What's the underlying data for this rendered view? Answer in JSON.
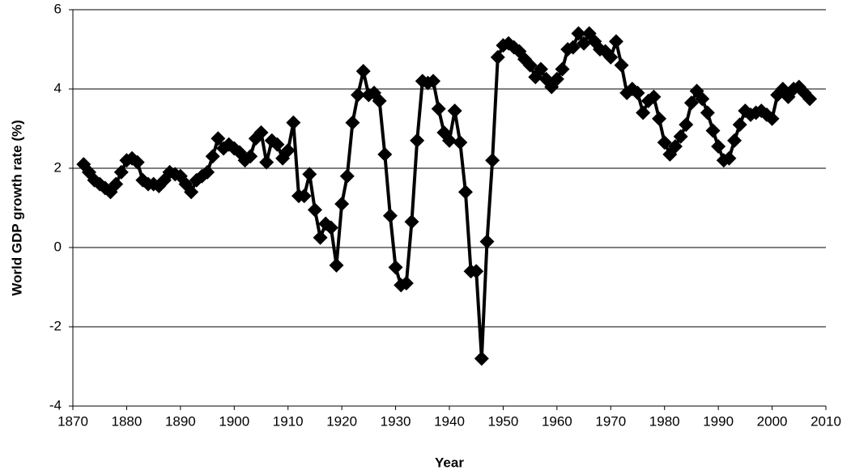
{
  "chart_data": {
    "type": "line",
    "x_label": "Year",
    "y_label": "World GDP growth rate (%)",
    "x": [
      1872,
      1873,
      1874,
      1875,
      1876,
      1877,
      1878,
      1879,
      1880,
      1881,
      1882,
      1883,
      1884,
      1885,
      1886,
      1887,
      1888,
      1889,
      1890,
      1891,
      1892,
      1893,
      1894,
      1895,
      1896,
      1897,
      1898,
      1899,
      1900,
      1901,
      1902,
      1903,
      1904,
      1905,
      1906,
      1907,
      1908,
      1909,
      1910,
      1911,
      1912,
      1913,
      1914,
      1915,
      1916,
      1917,
      1918,
      1919,
      1920,
      1921,
      1922,
      1923,
      1924,
      1925,
      1926,
      1927,
      1928,
      1929,
      1930,
      1931,
      1932,
      1933,
      1934,
      1935,
      1936,
      1937,
      1938,
      1939,
      1940,
      1941,
      1942,
      1943,
      1944,
      1945,
      1946,
      1947,
      1948,
      1949,
      1950,
      1951,
      1952,
      1953,
      1954,
      1955,
      1956,
      1957,
      1958,
      1959,
      1960,
      1961,
      1962,
      1963,
      1964,
      1965,
      1966,
      1967,
      1968,
      1969,
      1970,
      1971,
      1972,
      1973,
      1974,
      1975,
      1976,
      1977,
      1978,
      1979,
      1980,
      1981,
      1982,
      1983,
      1984,
      1985,
      1986,
      1987,
      1988,
      1989,
      1990,
      1991,
      1992,
      1993,
      1994,
      1995,
      1996,
      1997,
      1998,
      1999,
      2000,
      2001,
      2002,
      2003,
      2004,
      2005,
      2006,
      2007
    ],
    "values": [
      2.1,
      1.9,
      1.7,
      1.6,
      1.5,
      1.4,
      1.6,
      1.9,
      2.2,
      2.25,
      2.15,
      1.7,
      1.6,
      1.6,
      1.55,
      1.7,
      1.9,
      1.85,
      1.8,
      1.6,
      1.4,
      1.7,
      1.8,
      1.9,
      2.3,
      2.75,
      2.5,
      2.6,
      2.5,
      2.4,
      2.2,
      2.3,
      2.75,
      2.9,
      2.15,
      2.7,
      2.6,
      2.25,
      2.45,
      3.15,
      1.3,
      1.3,
      1.85,
      0.95,
      0.25,
      0.6,
      0.5,
      -0.45,
      1.1,
      1.8,
      3.15,
      3.85,
      4.45,
      3.85,
      3.9,
      3.7,
      2.35,
      0.8,
      -0.5,
      -0.95,
      -0.9,
      0.65,
      2.7,
      4.2,
      4.15,
      4.2,
      3.5,
      2.9,
      2.7,
      3.45,
      2.65,
      1.4,
      -0.6,
      -0.6,
      -2.8,
      0.15,
      2.2,
      4.8,
      5.1,
      5.15,
      5.05,
      4.95,
      4.75,
      4.6,
      4.3,
      4.5,
      4.25,
      4.05,
      4.25,
      4.5,
      5.0,
      5.05,
      5.4,
      5.15,
      5.4,
      5.2,
      5.0,
      4.95,
      4.8,
      5.2,
      4.6,
      3.9,
      4.0,
      3.9,
      3.4,
      3.7,
      3.8,
      3.25,
      2.65,
      2.35,
      2.55,
      2.8,
      3.1,
      3.65,
      3.95,
      3.75,
      3.4,
      2.95,
      2.55,
      2.2,
      2.25,
      2.7,
      3.1,
      3.45,
      3.35,
      3.4,
      3.45,
      3.35,
      3.25,
      3.85,
      4.0,
      3.8,
      4.0,
      4.05,
      3.9,
      3.75
    ],
    "color": "#000000",
    "xlim": [
      1870,
      2010
    ],
    "xticks": [
      1870,
      1880,
      1890,
      1900,
      1910,
      1920,
      1930,
      1940,
      1950,
      1960,
      1970,
      1980,
      1990,
      2000,
      2010
    ],
    "ylim": [
      -4,
      6
    ],
    "yticks": [
      -4,
      -2,
      0,
      2,
      4,
      6
    ],
    "grid": true
  }
}
